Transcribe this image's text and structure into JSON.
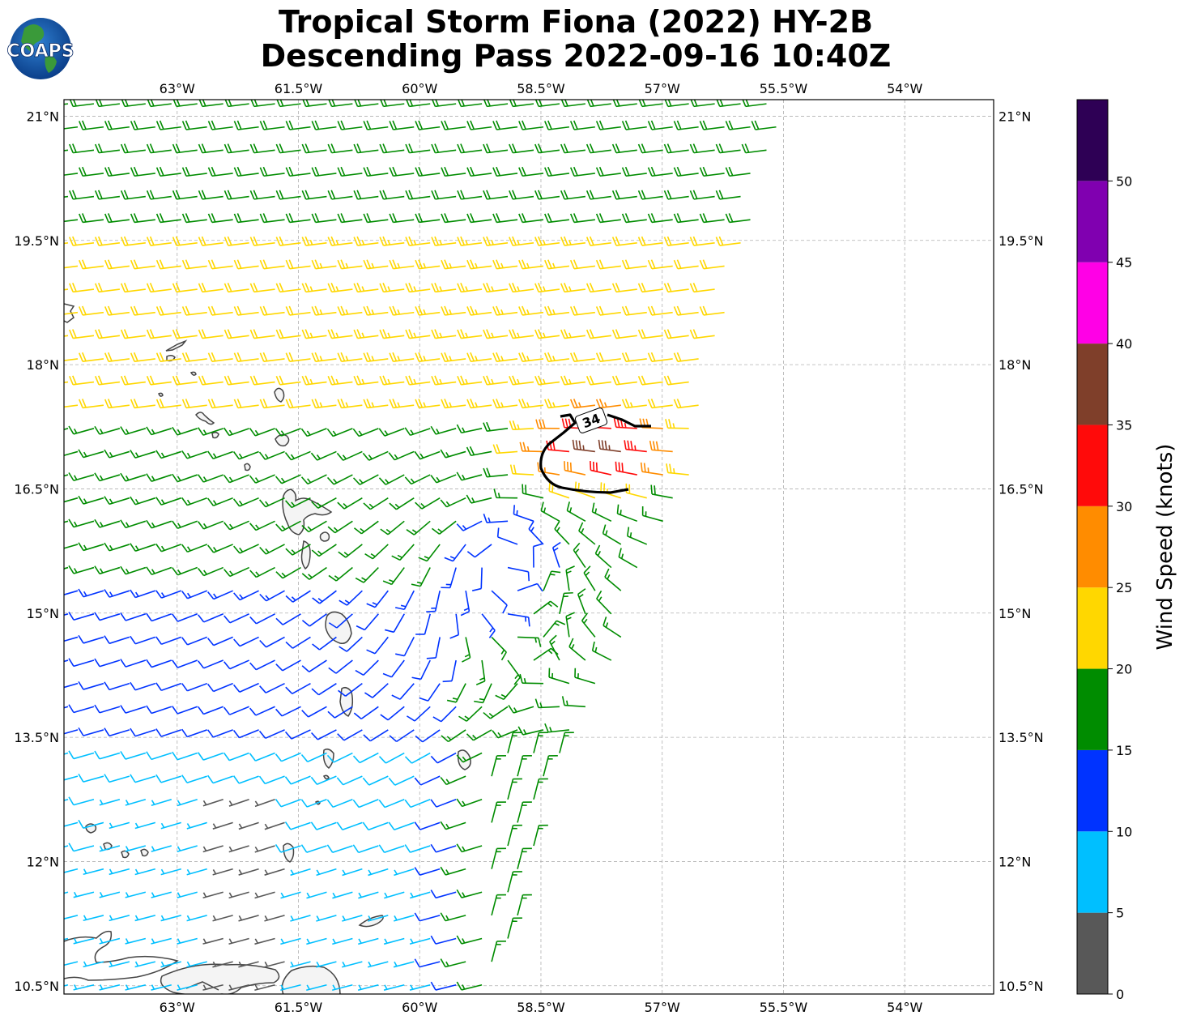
{
  "title": {
    "line1": "Tropical Storm Fiona (2022) HY-2B",
    "line2": "Descending Pass 2022-09-16 10:40Z"
  },
  "logo": {
    "text": "COAPS"
  },
  "map": {
    "lon_range": [
      -64.4,
      -52.9
    ],
    "lat_range": [
      10.4,
      21.2
    ],
    "lon_ticks": [
      -63,
      -61.5,
      -60,
      -58.5,
      -57,
      -55.5,
      -54
    ],
    "lon_tick_labels": [
      "63°W",
      "61.5°W",
      "60°W",
      "58.5°W",
      "57°W",
      "55.5°W",
      "54°W"
    ],
    "lat_ticks": [
      21,
      19.5,
      18,
      16.5,
      15,
      13.5,
      12,
      10.5
    ],
    "lat_tick_labels": [
      "21°N",
      "19.5°N",
      "18°N",
      "16.5°N",
      "15°N",
      "13.5°N",
      "12°N",
      "10.5°N"
    ],
    "grid": true,
    "contour_label": "34",
    "storm_center": {
      "lon": -58.9,
      "lat": 15.6
    },
    "swath_east_edge": [
      [
        -55.4,
        21.2
      ],
      [
        -56.8,
        16.2
      ],
      [
        -58.5,
        12.5
      ],
      [
        -59.0,
        10.4
      ]
    ]
  },
  "colorbar": {
    "label": "Wind Speed (knots)",
    "bounds": [
      0,
      5,
      10,
      15,
      20,
      25,
      30,
      35,
      40,
      45,
      50,
      55
    ],
    "tick_labels": [
      "0",
      "5",
      "10",
      "15",
      "20",
      "25",
      "30",
      "35",
      "40",
      "45",
      "50"
    ],
    "colors": [
      "#585858",
      "#00bfff",
      "#0033ff",
      "#008c00",
      "#ffd700",
      "#ff8c00",
      "#ff0a0a",
      "#7f3f2a",
      "#ff00e6",
      "#8000b0",
      "#2e0055"
    ]
  }
}
